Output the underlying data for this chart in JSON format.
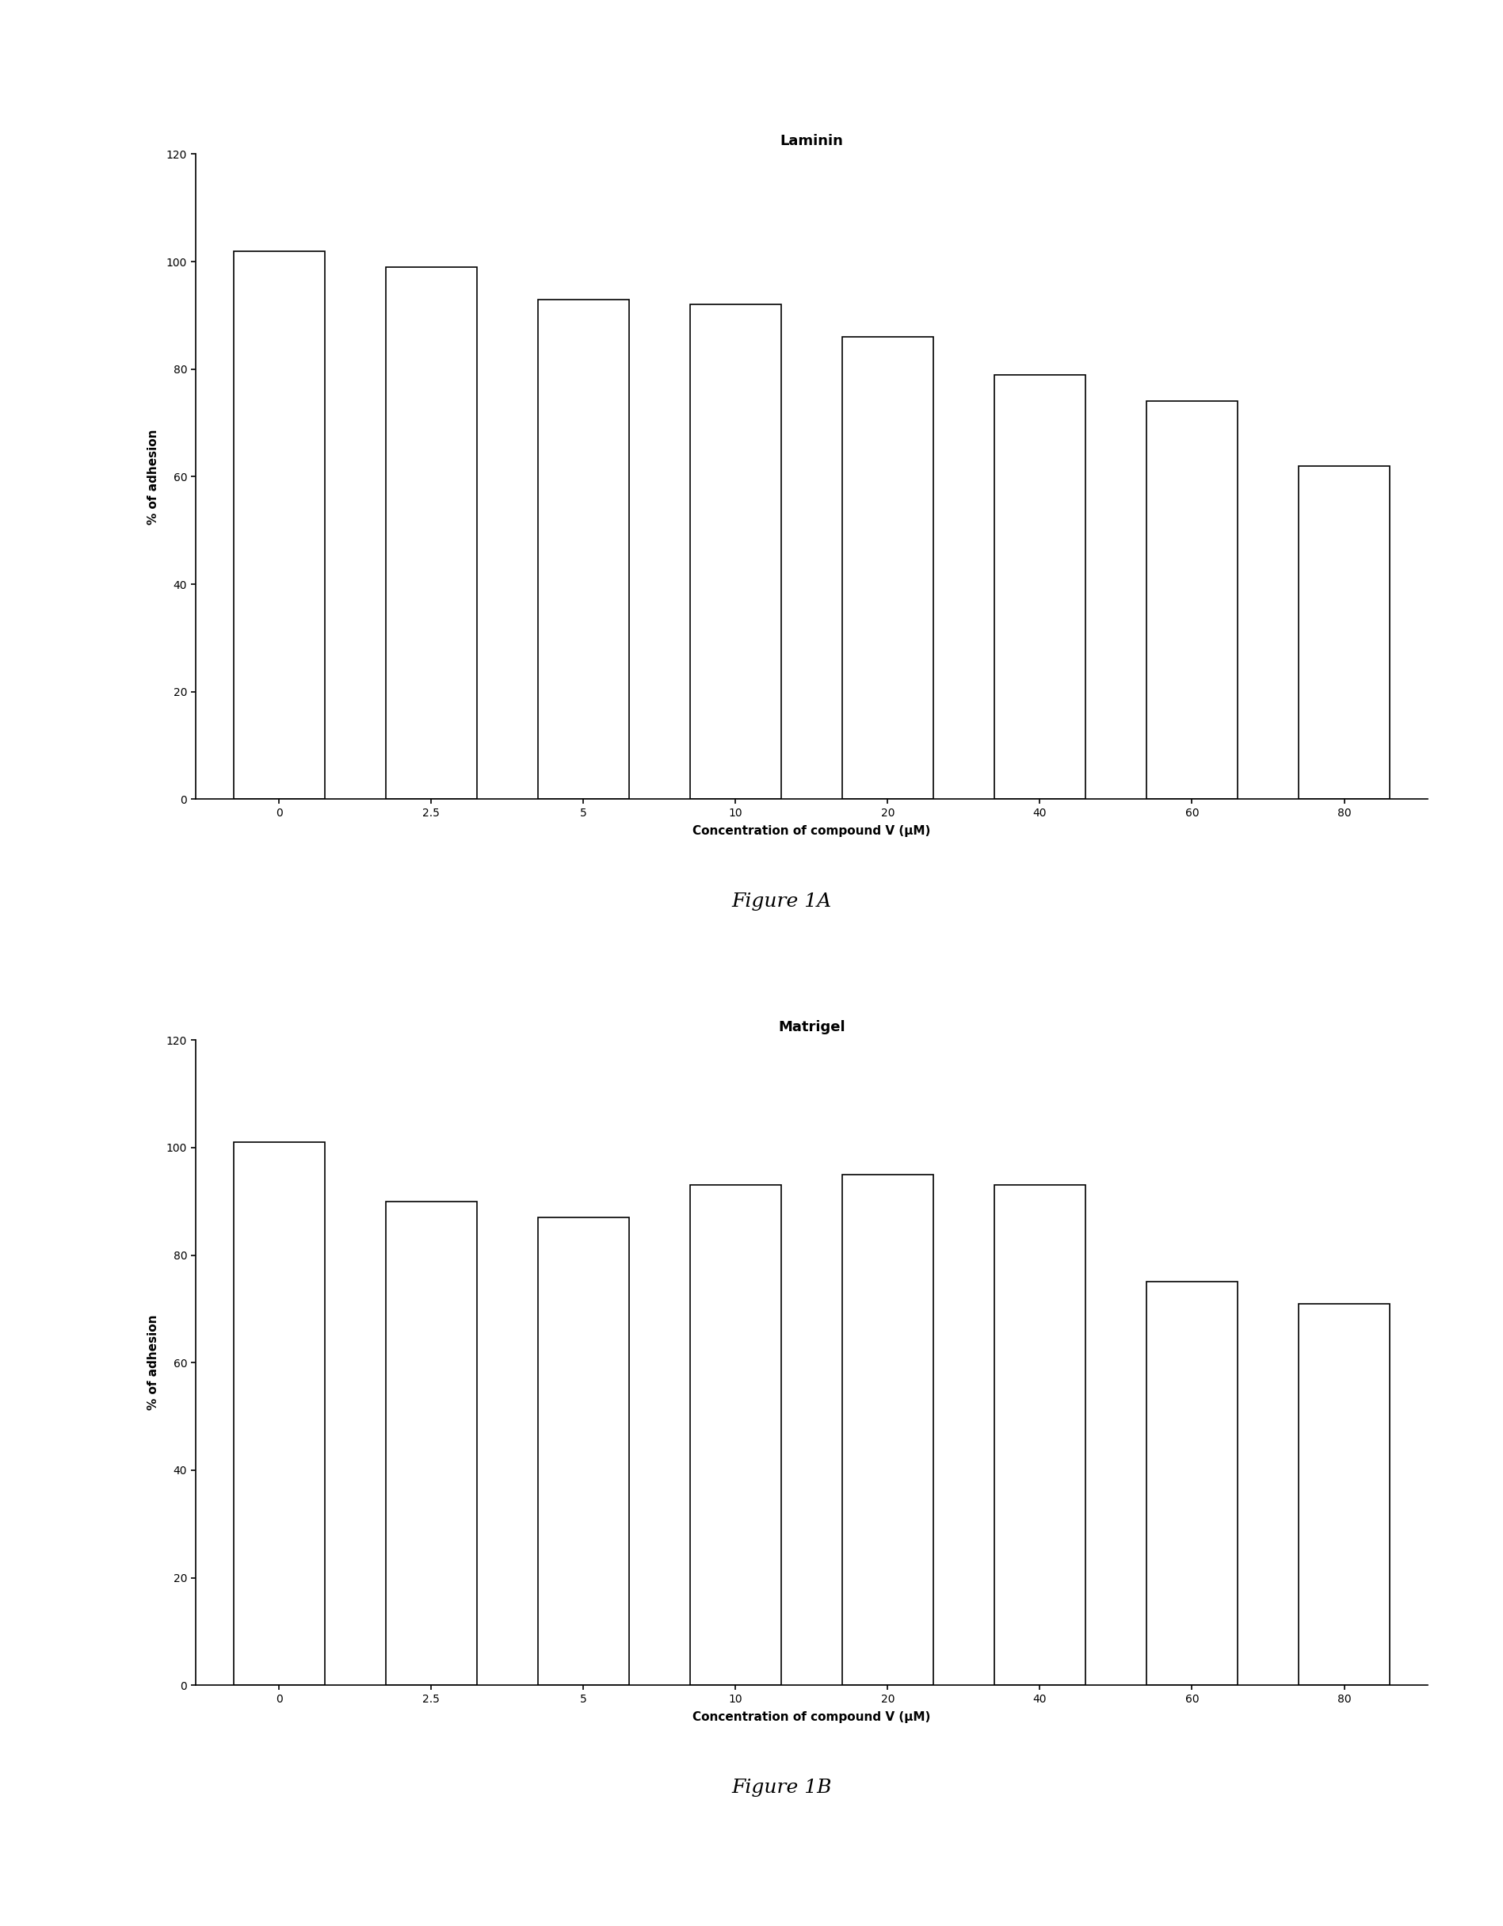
{
  "fig1a": {
    "title": "Laminin",
    "xlabel": "Concentration of compound V (μM)",
    "ylabel": "% of adhesion",
    "categories": [
      "0",
      "2.5",
      "5",
      "10",
      "20",
      "40",
      "60",
      "80"
    ],
    "values": [
      102,
      99,
      93,
      92,
      86,
      79,
      74,
      62
    ],
    "ylim": [
      0,
      120
    ],
    "yticks": [
      0,
      20,
      40,
      60,
      80,
      100,
      120
    ],
    "caption": "Figure 1A"
  },
  "fig1b": {
    "title": "Matrigel",
    "xlabel": "Concentration of compound V (μM)",
    "ylabel": "% of adhesion",
    "categories": [
      "0",
      "2.5",
      "5",
      "10",
      "20",
      "40",
      "60",
      "80"
    ],
    "values": [
      101,
      90,
      87,
      93,
      95,
      93,
      75,
      71
    ],
    "ylim": [
      0,
      120
    ],
    "yticks": [
      0,
      20,
      40,
      60,
      80,
      100,
      120
    ],
    "caption": "Figure 1B"
  },
  "background_color": "#ffffff",
  "bar_color": "#ffffff",
  "bar_edge_color": "#000000",
  "bar_linewidth": 1.2,
  "title_fontsize": 13,
  "label_fontsize": 11,
  "tick_fontsize": 10,
  "caption_fontsize": 18,
  "bar_width": 0.6
}
